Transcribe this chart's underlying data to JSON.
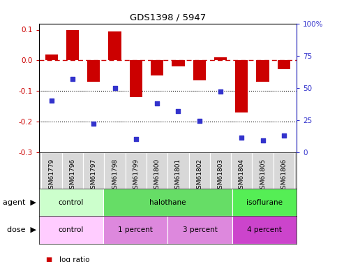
{
  "title": "GDS1398 / 5947",
  "samples": [
    "GSM61779",
    "GSM61796",
    "GSM61797",
    "GSM61798",
    "GSM61799",
    "GSM61800",
    "GSM61801",
    "GSM61802",
    "GSM61803",
    "GSM61804",
    "GSM61805",
    "GSM61806"
  ],
  "log_ratio": [
    0.02,
    0.1,
    -0.07,
    0.095,
    -0.12,
    -0.05,
    -0.02,
    -0.065,
    0.01,
    -0.17,
    -0.07,
    -0.03
  ],
  "percentile": [
    40,
    57,
    22,
    50,
    10,
    38,
    32,
    24,
    47,
    11,
    9,
    13
  ],
  "bar_color": "#cc0000",
  "dot_color": "#3333cc",
  "dashed_line_color": "#cc0000",
  "ylim_left": [
    -0.3,
    0.12
  ],
  "ylim_right": [
    0,
    100
  ],
  "yticks_left": [
    -0.3,
    -0.2,
    -0.1,
    0.0,
    0.1
  ],
  "yticks_right": [
    0,
    25,
    50,
    75,
    100
  ],
  "agent_groups": [
    {
      "label": "control",
      "start": 0,
      "end": 3,
      "color": "#ccffcc"
    },
    {
      "label": "halothane",
      "start": 3,
      "end": 9,
      "color": "#66dd66"
    },
    {
      "label": "isoflurane",
      "start": 9,
      "end": 12,
      "color": "#55ee55"
    }
  ],
  "dose_groups": [
    {
      "label": "control",
      "start": 0,
      "end": 3,
      "color": "#ffccff"
    },
    {
      "label": "1 percent",
      "start": 3,
      "end": 6,
      "color": "#dd88dd"
    },
    {
      "label": "3 percent",
      "start": 6,
      "end": 9,
      "color": "#dd88dd"
    },
    {
      "label": "4 percent",
      "start": 9,
      "end": 12,
      "color": "#cc44cc"
    }
  ]
}
